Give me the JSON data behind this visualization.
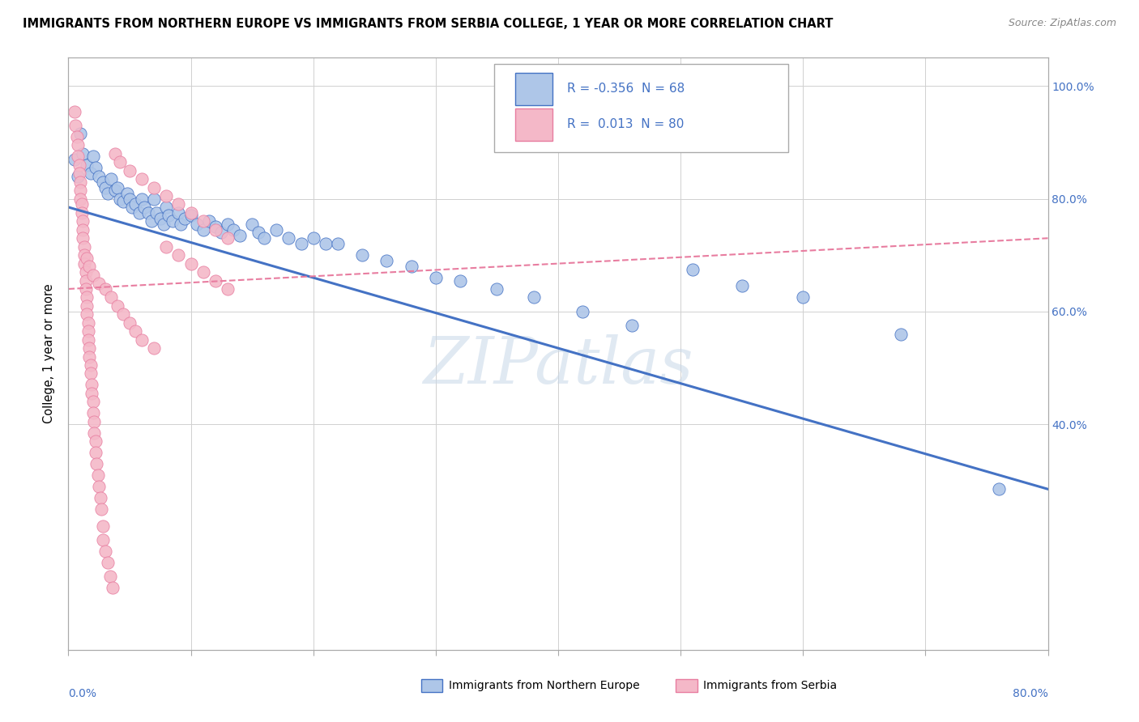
{
  "title": "IMMIGRANTS FROM NORTHERN EUROPE VS IMMIGRANTS FROM SERBIA COLLEGE, 1 YEAR OR MORE CORRELATION CHART",
  "source": "Source: ZipAtlas.com",
  "ylabel": "College, 1 year or more",
  "color_blue": "#aec6e8",
  "color_pink": "#f4b8c8",
  "color_blue_dark": "#4472c4",
  "color_pink_dark": "#e87da0",
  "color_text_blue": "#4472c4",
  "watermark_text": "ZIPatlas",
  "blue_points": [
    [
      0.005,
      0.87
    ],
    [
      0.008,
      0.84
    ],
    [
      0.01,
      0.915
    ],
    [
      0.012,
      0.88
    ],
    [
      0.015,
      0.86
    ],
    [
      0.018,
      0.845
    ],
    [
      0.02,
      0.875
    ],
    [
      0.022,
      0.855
    ],
    [
      0.025,
      0.84
    ],
    [
      0.028,
      0.83
    ],
    [
      0.03,
      0.82
    ],
    [
      0.032,
      0.81
    ],
    [
      0.035,
      0.835
    ],
    [
      0.038,
      0.815
    ],
    [
      0.04,
      0.82
    ],
    [
      0.042,
      0.8
    ],
    [
      0.045,
      0.795
    ],
    [
      0.048,
      0.81
    ],
    [
      0.05,
      0.8
    ],
    [
      0.052,
      0.785
    ],
    [
      0.055,
      0.79
    ],
    [
      0.058,
      0.775
    ],
    [
      0.06,
      0.8
    ],
    [
      0.062,
      0.785
    ],
    [
      0.065,
      0.775
    ],
    [
      0.068,
      0.76
    ],
    [
      0.07,
      0.8
    ],
    [
      0.072,
      0.775
    ],
    [
      0.075,
      0.765
    ],
    [
      0.078,
      0.755
    ],
    [
      0.08,
      0.785
    ],
    [
      0.082,
      0.77
    ],
    [
      0.085,
      0.76
    ],
    [
      0.09,
      0.775
    ],
    [
      0.092,
      0.755
    ],
    [
      0.095,
      0.765
    ],
    [
      0.1,
      0.77
    ],
    [
      0.105,
      0.755
    ],
    [
      0.11,
      0.745
    ],
    [
      0.115,
      0.76
    ],
    [
      0.12,
      0.75
    ],
    [
      0.125,
      0.74
    ],
    [
      0.13,
      0.755
    ],
    [
      0.135,
      0.745
    ],
    [
      0.14,
      0.735
    ],
    [
      0.15,
      0.755
    ],
    [
      0.155,
      0.74
    ],
    [
      0.16,
      0.73
    ],
    [
      0.17,
      0.745
    ],
    [
      0.18,
      0.73
    ],
    [
      0.19,
      0.72
    ],
    [
      0.2,
      0.73
    ],
    [
      0.21,
      0.72
    ],
    [
      0.22,
      0.72
    ],
    [
      0.24,
      0.7
    ],
    [
      0.26,
      0.69
    ],
    [
      0.28,
      0.68
    ],
    [
      0.3,
      0.66
    ],
    [
      0.32,
      0.655
    ],
    [
      0.35,
      0.64
    ],
    [
      0.38,
      0.625
    ],
    [
      0.42,
      0.6
    ],
    [
      0.46,
      0.575
    ],
    [
      0.51,
      0.675
    ],
    [
      0.55,
      0.645
    ],
    [
      0.6,
      0.625
    ],
    [
      0.68,
      0.56
    ],
    [
      0.76,
      0.285
    ]
  ],
  "pink_points": [
    [
      0.005,
      0.955
    ],
    [
      0.006,
      0.93
    ],
    [
      0.007,
      0.91
    ],
    [
      0.008,
      0.895
    ],
    [
      0.008,
      0.875
    ],
    [
      0.009,
      0.86
    ],
    [
      0.009,
      0.845
    ],
    [
      0.01,
      0.83
    ],
    [
      0.01,
      0.815
    ],
    [
      0.01,
      0.8
    ],
    [
      0.011,
      0.79
    ],
    [
      0.011,
      0.775
    ],
    [
      0.012,
      0.76
    ],
    [
      0.012,
      0.745
    ],
    [
      0.012,
      0.73
    ],
    [
      0.013,
      0.715
    ],
    [
      0.013,
      0.7
    ],
    [
      0.013,
      0.685
    ],
    [
      0.014,
      0.67
    ],
    [
      0.014,
      0.655
    ],
    [
      0.014,
      0.64
    ],
    [
      0.015,
      0.625
    ],
    [
      0.015,
      0.61
    ],
    [
      0.015,
      0.595
    ],
    [
      0.016,
      0.58
    ],
    [
      0.016,
      0.565
    ],
    [
      0.016,
      0.55
    ],
    [
      0.017,
      0.535
    ],
    [
      0.017,
      0.52
    ],
    [
      0.018,
      0.505
    ],
    [
      0.018,
      0.49
    ],
    [
      0.019,
      0.47
    ],
    [
      0.019,
      0.455
    ],
    [
      0.02,
      0.44
    ],
    [
      0.02,
      0.42
    ],
    [
      0.021,
      0.405
    ],
    [
      0.021,
      0.385
    ],
    [
      0.022,
      0.37
    ],
    [
      0.022,
      0.35
    ],
    [
      0.023,
      0.33
    ],
    [
      0.024,
      0.31
    ],
    [
      0.025,
      0.29
    ],
    [
      0.026,
      0.27
    ],
    [
      0.027,
      0.25
    ],
    [
      0.028,
      0.22
    ],
    [
      0.028,
      0.195
    ],
    [
      0.03,
      0.175
    ],
    [
      0.032,
      0.155
    ],
    [
      0.034,
      0.13
    ],
    [
      0.036,
      0.11
    ],
    [
      0.015,
      0.695
    ],
    [
      0.017,
      0.68
    ],
    [
      0.02,
      0.665
    ],
    [
      0.025,
      0.65
    ],
    [
      0.03,
      0.64
    ],
    [
      0.035,
      0.625
    ],
    [
      0.04,
      0.61
    ],
    [
      0.045,
      0.595
    ],
    [
      0.05,
      0.58
    ],
    [
      0.055,
      0.565
    ],
    [
      0.06,
      0.55
    ],
    [
      0.07,
      0.535
    ],
    [
      0.08,
      0.715
    ],
    [
      0.09,
      0.7
    ],
    [
      0.1,
      0.685
    ],
    [
      0.11,
      0.67
    ],
    [
      0.12,
      0.655
    ],
    [
      0.13,
      0.64
    ],
    [
      0.038,
      0.88
    ],
    [
      0.042,
      0.865
    ],
    [
      0.05,
      0.85
    ],
    [
      0.06,
      0.835
    ],
    [
      0.07,
      0.82
    ],
    [
      0.08,
      0.805
    ],
    [
      0.09,
      0.79
    ],
    [
      0.1,
      0.775
    ],
    [
      0.11,
      0.76
    ],
    [
      0.12,
      0.745
    ],
    [
      0.13,
      0.73
    ]
  ],
  "xlim": [
    0.0,
    0.8
  ],
  "ylim": [
    0.0,
    1.05
  ],
  "yticks": [
    0.4,
    0.6,
    0.8,
    1.0
  ],
  "ytick_labels": [
    "40.0%",
    "60.0%",
    "80.0%",
    "100.0%"
  ],
  "xticks": [
    0.0,
    0.1,
    0.2,
    0.3,
    0.4,
    0.5,
    0.6,
    0.7,
    0.8
  ],
  "blue_line_x": [
    0.0,
    0.8
  ],
  "blue_line_y": [
    0.785,
    0.285
  ],
  "pink_line_x": [
    0.0,
    0.8
  ],
  "pink_line_y": [
    0.64,
    0.73
  ]
}
